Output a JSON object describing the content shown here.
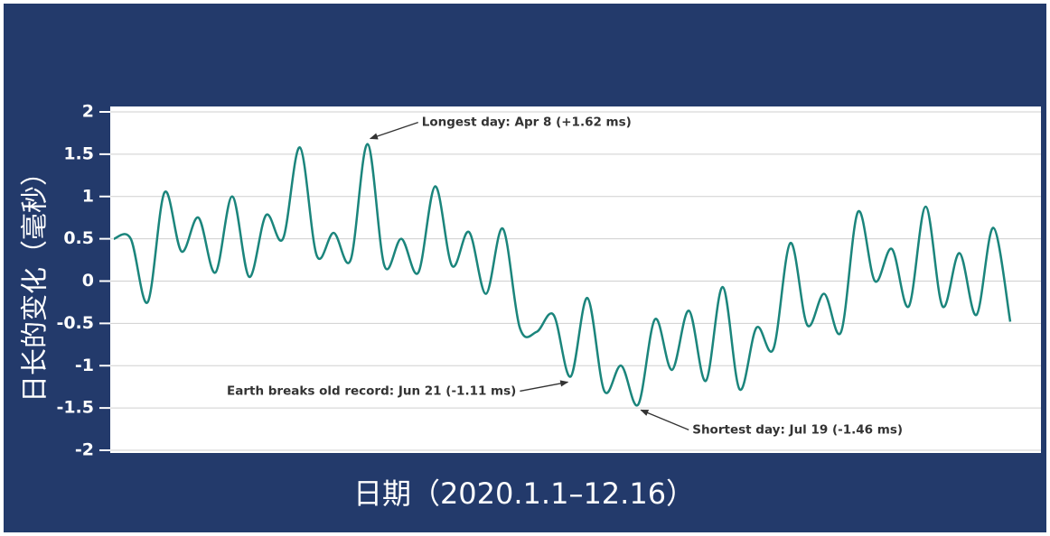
{
  "chart_data": {
    "type": "line",
    "y_label": "日长的变化（毫秒）",
    "x_label": "日期（2020.1.1–12.16）",
    "annotations": [
      "Longest day: Apr 8 (+1.62 ms)",
      "Earth breaks old record: Jun 21 (-1.11 ms)",
      "Shortest day: Jul 19 (-1.46 ms)"
    ],
    "color": "#1b857c",
    "values": [
      0.5,
      0.5,
      -0.25,
      1.05,
      0.35,
      0.75,
      0.1,
      1.0,
      0.05,
      0.78,
      0.5,
      1.58,
      0.3,
      0.57,
      0.25,
      1.62,
      0.18,
      0.5,
      0.1,
      1.12,
      0.18,
      0.58,
      -0.15,
      0.62,
      -0.55,
      -0.6,
      -0.4,
      -1.13,
      -0.2,
      -1.3,
      -1.0,
      -1.46,
      -0.45,
      -1.05,
      -0.35,
      -1.18,
      -0.07,
      -1.28,
      -0.55,
      -0.8,
      0.45,
      -0.52,
      -0.15,
      -0.6,
      0.82,
      0.0,
      0.38,
      -0.3,
      0.88,
      -0.3,
      0.33,
      -0.4,
      0.63,
      -0.48
    ],
    "ylim": [
      -2,
      2
    ],
    "yticks": [
      2,
      1.5,
      1,
      0.5,
      0,
      -0.5,
      -1,
      -1.5,
      -2
    ],
    "grid": true
  }
}
